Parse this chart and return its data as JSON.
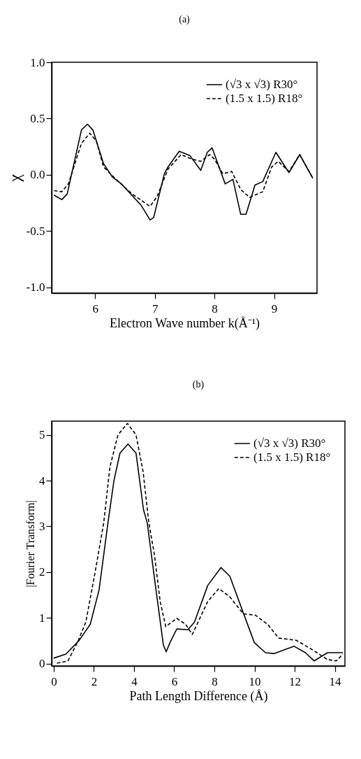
{
  "chart_data": [
    {
      "type": "line",
      "title": "(a)",
      "xlabel": "Electron Wave  number k(Å⁻¹)",
      "ylabel": "χ",
      "xlim": [
        5.27,
        9.72
      ],
      "ylim": [
        -1.05,
        1.0
      ],
      "xticks": [
        6,
        7,
        8,
        9
      ],
      "yticks": [
        {
          "value": -1,
          "label": "-1.0"
        },
        {
          "value": -0.5,
          "label": "-0.5"
        },
        {
          "value": 0,
          "label": "0.0"
        },
        {
          "value": 0.5,
          "label": "0.5"
        },
        {
          "value": 1,
          "label": "1.0"
        }
      ],
      "grid": false,
      "legend": "top right",
      "series": [
        {
          "name": "(√3 x √3) R30°",
          "color": "#000000",
          "line_style": "solid",
          "x": [
            5.31,
            5.44,
            5.53,
            5.77,
            5.87,
            5.96,
            6.14,
            6.29,
            6.44,
            6.77,
            6.92,
            6.98,
            7.16,
            7.22,
            7.41,
            7.59,
            7.77,
            7.88,
            7.96,
            8.18,
            8.31,
            8.44,
            8.53,
            8.68,
            8.81,
            9.03,
            9.25,
            9.43,
            9.65
          ],
          "values": [
            -0.18,
            -0.22,
            -0.17,
            0.4,
            0.45,
            0.4,
            0.1,
            -0.02,
            -0.08,
            -0.27,
            -0.4,
            -0.38,
            0.01,
            0.07,
            0.21,
            0.17,
            0.04,
            0.2,
            0.24,
            -0.08,
            -0.04,
            -0.35,
            -0.35,
            -0.09,
            -0.06,
            0.2,
            0.02,
            0.18,
            -0.03
          ]
        },
        {
          "name": "(1.5 x 1.5) R18°",
          "color": "#000000",
          "line_style": "dashed",
          "x": [
            5.31,
            5.44,
            5.55,
            5.77,
            5.91,
            6.02,
            6.14,
            6.33,
            6.62,
            6.92,
            7.04,
            7.22,
            7.44,
            7.62,
            7.77,
            7.92,
            8.0,
            8.14,
            8.29,
            8.44,
            8.59,
            8.81,
            8.96,
            9.07,
            9.25,
            9.43,
            9.65
          ],
          "values": [
            -0.14,
            -0.15,
            -0.08,
            0.28,
            0.37,
            0.3,
            0.07,
            -0.03,
            -0.17,
            -0.28,
            -0.19,
            0.05,
            0.18,
            0.14,
            0.12,
            0.18,
            0.14,
            0.01,
            0.03,
            -0.13,
            -0.2,
            -0.15,
            0.07,
            0.12,
            0.03,
            0.18,
            -0.03
          ]
        }
      ]
    },
    {
      "type": "line",
      "title": "(b)",
      "xlabel": "Path Length Difference (Å)",
      "ylabel": "|Fourier Transform|",
      "xlim": [
        -0.1,
        14.5
      ],
      "ylim": [
        -0.05,
        5.3
      ],
      "xticks": [
        0,
        2,
        4,
        6,
        8,
        10,
        12,
        14
      ],
      "yticks": [
        0,
        1,
        2,
        3,
        4,
        5
      ],
      "grid": false,
      "legend": "top right",
      "series": [
        {
          "name": "(√3 x √3) R30°",
          "color": "#000000",
          "line_style": "solid",
          "x": [
            0,
            0.61,
            1.27,
            1.82,
            2.26,
            2.7,
            3.0,
            3.3,
            3.7,
            4.1,
            4.47,
            4.66,
            5.02,
            5.46,
            5.6,
            5.79,
            6.13,
            6.68,
            7.01,
            7.67,
            8.33,
            8.77,
            9.44,
            9.99,
            10.54,
            10.98,
            11.97,
            12.53,
            12.97,
            13.63,
            14.4
          ],
          "values": [
            0.12,
            0.21,
            0.51,
            0.86,
            1.61,
            3.07,
            4.0,
            4.6,
            4.8,
            4.6,
            3.37,
            3.07,
            1.86,
            0.41,
            0.26,
            0.46,
            0.76,
            0.74,
            0.91,
            1.71,
            2.1,
            1.91,
            1.11,
            0.46,
            0.24,
            0.22,
            0.38,
            0.24,
            0.06,
            0.24,
            0.24
          ]
        },
        {
          "name": "(1.5 x 1.5) R18°",
          "color": "#000000",
          "line_style": "dashed",
          "x": [
            0.16,
            0.71,
            1.21,
            1.6,
            2.05,
            2.49,
            2.8,
            3.2,
            3.67,
            4.1,
            4.45,
            4.74,
            5.02,
            5.3,
            5.58,
            6.13,
            6.57,
            6.9,
            7.67,
            8.22,
            8.77,
            9.44,
            10.04,
            10.65,
            11.2,
            12.08,
            12.86,
            13.63,
            14.07,
            14.4
          ],
          "values": [
            0.01,
            0.06,
            0.49,
            0.91,
            1.97,
            3.07,
            4.3,
            5.0,
            5.25,
            5.0,
            4.2,
            3.07,
            2.37,
            1.36,
            0.81,
            0.99,
            0.86,
            0.64,
            1.36,
            1.64,
            1.46,
            1.09,
            1.06,
            0.86,
            0.56,
            0.51,
            0.31,
            0.09,
            0.06,
            0.21
          ]
        }
      ]
    }
  ]
}
